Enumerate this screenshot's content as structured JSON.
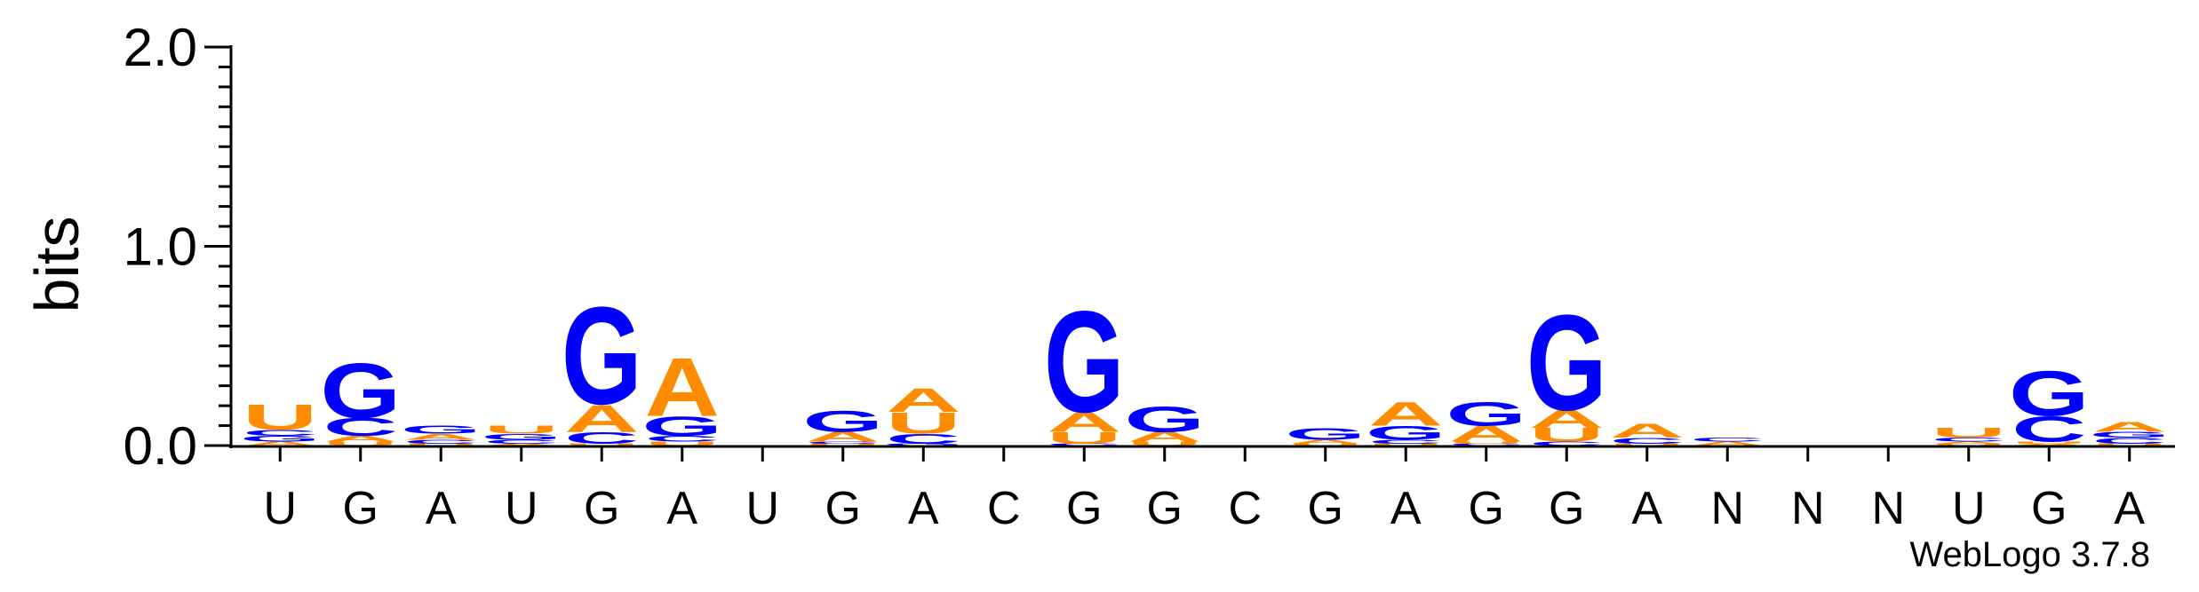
{
  "chart_data": {
    "type": "sequence-logo",
    "ylabel": "bits",
    "ylim": [
      0,
      2.0
    ],
    "yticks": [
      {
        "value": 0.0,
        "label": "0.0"
      },
      {
        "value": 1.0,
        "label": "1.0"
      },
      {
        "value": 2.0,
        "label": "2.0"
      }
    ],
    "consensus": [
      "U",
      "G",
      "A",
      "U",
      "G",
      "A",
      "U",
      "G",
      "A",
      "C",
      "G",
      "G",
      "C",
      "G",
      "A",
      "G",
      "G",
      "A",
      "N",
      "N",
      "N",
      "U",
      "G",
      "A"
    ],
    "colors": {
      "G": "#0000ff",
      "C": "#0000ff",
      "A": "#ff8c00",
      "U": "#ff8c00"
    },
    "positions": [
      {
        "stack": [
          [
            "A",
            0.02
          ],
          [
            "G",
            0.03
          ],
          [
            "C",
            0.03
          ],
          [
            "U",
            0.13
          ]
        ]
      },
      {
        "stack": [
          [
            "U",
            0.02
          ],
          [
            "A",
            0.03
          ],
          [
            "C",
            0.09
          ],
          [
            "G",
            0.28
          ]
        ]
      },
      {
        "stack": [
          [
            "U",
            0.01
          ],
          [
            "C",
            0.02
          ],
          [
            "A",
            0.03
          ],
          [
            "G",
            0.04
          ]
        ]
      },
      {
        "stack": [
          [
            "A",
            0.01
          ],
          [
            "C",
            0.02
          ],
          [
            "G",
            0.03
          ],
          [
            "U",
            0.04
          ]
        ]
      },
      {
        "stack": [
          [
            "U",
            0.01
          ],
          [
            "C",
            0.06
          ],
          [
            "A",
            0.14
          ],
          [
            "G",
            0.5
          ]
        ]
      },
      {
        "stack": [
          [
            "U",
            0.02
          ],
          [
            "C",
            0.03
          ],
          [
            "G",
            0.1
          ],
          [
            "A",
            0.3
          ]
        ]
      },
      {
        "stack": []
      },
      {
        "stack": [
          [
            "U",
            0.01
          ],
          [
            "C",
            0.01
          ],
          [
            "A",
            0.05
          ],
          [
            "G",
            0.11
          ]
        ]
      },
      {
        "stack": [
          [
            "G",
            0.01
          ],
          [
            "C",
            0.05
          ],
          [
            "U",
            0.11
          ],
          [
            "A",
            0.12
          ]
        ]
      },
      {
        "stack": []
      },
      {
        "stack": [
          [
            "C",
            0.01
          ],
          [
            "U",
            0.06
          ],
          [
            "A",
            0.1
          ],
          [
            "G",
            0.52
          ]
        ]
      },
      {
        "stack": [
          [
            "U",
            0.02
          ],
          [
            "A",
            0.05
          ],
          [
            "G",
            0.13
          ]
        ]
      },
      {
        "stack": []
      },
      {
        "stack": [
          [
            "U",
            0.01
          ],
          [
            "A",
            0.02
          ],
          [
            "G",
            0.06
          ]
        ]
      },
      {
        "stack": [
          [
            "U",
            0.01
          ],
          [
            "C",
            0.02
          ],
          [
            "G",
            0.07
          ],
          [
            "A",
            0.12
          ]
        ]
      },
      {
        "stack": [
          [
            "C",
            0.01
          ],
          [
            "U",
            0.01
          ],
          [
            "A",
            0.08
          ],
          [
            "G",
            0.12
          ]
        ]
      },
      {
        "stack": [
          [
            "C",
            0.02
          ],
          [
            "U",
            0.07
          ],
          [
            "A",
            0.09
          ],
          [
            "G",
            0.49
          ]
        ]
      },
      {
        "stack": [
          [
            "U",
            0.01
          ],
          [
            "C",
            0.03
          ],
          [
            "A",
            0.07
          ]
        ]
      },
      {
        "stack": [
          [
            "A",
            0.02
          ],
          [
            "C",
            0.02
          ]
        ]
      },
      {
        "stack": []
      },
      {
        "stack": []
      },
      {
        "stack": [
          [
            "U",
            0.01
          ],
          [
            "A",
            0.01
          ],
          [
            "C",
            0.02
          ],
          [
            "U",
            0.05
          ]
        ]
      },
      {
        "stack": [
          [
            "A",
            0.01
          ],
          [
            "U",
            0.01
          ],
          [
            "C",
            0.13
          ],
          [
            "G",
            0.23
          ]
        ]
      },
      {
        "stack": [
          [
            "U",
            0.01
          ],
          [
            "C",
            0.03
          ],
          [
            "G",
            0.03
          ],
          [
            "A",
            0.05
          ]
        ]
      }
    ]
  },
  "credit": "WebLogo 3.7.8"
}
